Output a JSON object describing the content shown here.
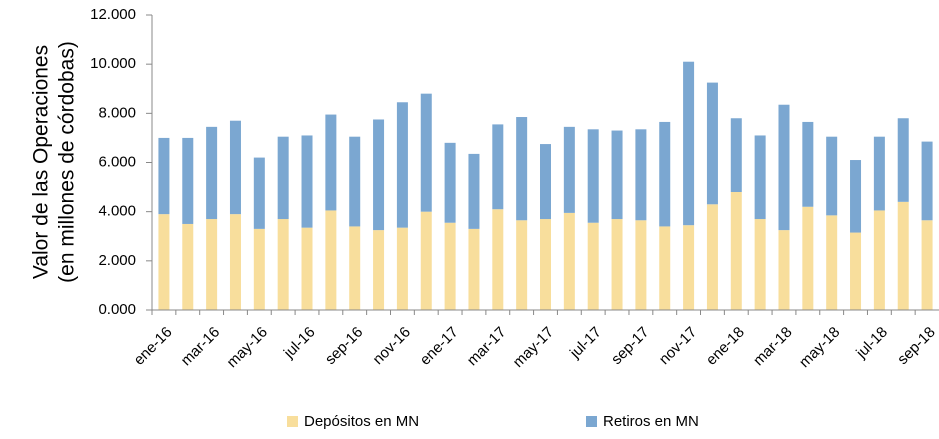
{
  "chart_data": {
    "type": "stacked_bar",
    "ylabel": [
      "Valor de las Operaciones",
      "(en millones de córdobas)"
    ],
    "categories": [
      "ene-16",
      null,
      "mar-16",
      null,
      "may-16",
      null,
      "jul-16",
      null,
      "sep-16",
      null,
      "nov-16",
      null,
      "ene-17",
      null,
      "mar-17",
      null,
      "may-17",
      null,
      "jul-17",
      null,
      "sep-17",
      null,
      "nov-17",
      null,
      "ene-18",
      null,
      "mar-18",
      null,
      "may-18",
      null,
      "jul-18",
      null,
      "sep-18"
    ],
    "series": [
      {
        "name": "Depósitos en MN",
        "color": "#f8de9c",
        "values": [
          3900,
          3500,
          3700,
          3900,
          3300,
          3700,
          3350,
          4050,
          3400,
          3250,
          3350,
          4000,
          3550,
          3300,
          4100,
          3650,
          3700,
          3950,
          3550,
          3700,
          3650,
          3400,
          3450,
          4300,
          4800,
          3700,
          3250,
          4200,
          3850,
          3150,
          4050,
          4400,
          3650
        ]
      },
      {
        "name": "Retiros en MN",
        "color": "#7ba7d1",
        "values": [
          3100,
          3500,
          3750,
          3800,
          2900,
          3350,
          3750,
          3900,
          3650,
          4500,
          5100,
          4800,
          3250,
          3050,
          3450,
          4200,
          3050,
          3500,
          3800,
          3600,
          3700,
          4250,
          6650,
          4950,
          3000,
          3400,
          5100,
          3450,
          3200,
          2950,
          3000,
          3400,
          3200
        ]
      }
    ],
    "ylim": [
      0,
      12000
    ],
    "yticks": [
      {
        "value": 0,
        "label": "0.000"
      },
      {
        "value": 2000,
        "label": "2.000"
      },
      {
        "value": 4000,
        "label": "4.000"
      },
      {
        "value": 6000,
        "label": "6.000"
      },
      {
        "value": 8000,
        "label": "8.000"
      },
      {
        "value": 10000,
        "label": "10.000"
      },
      {
        "value": 12000,
        "label": "12.000"
      }
    ],
    "legend": "bottom"
  }
}
